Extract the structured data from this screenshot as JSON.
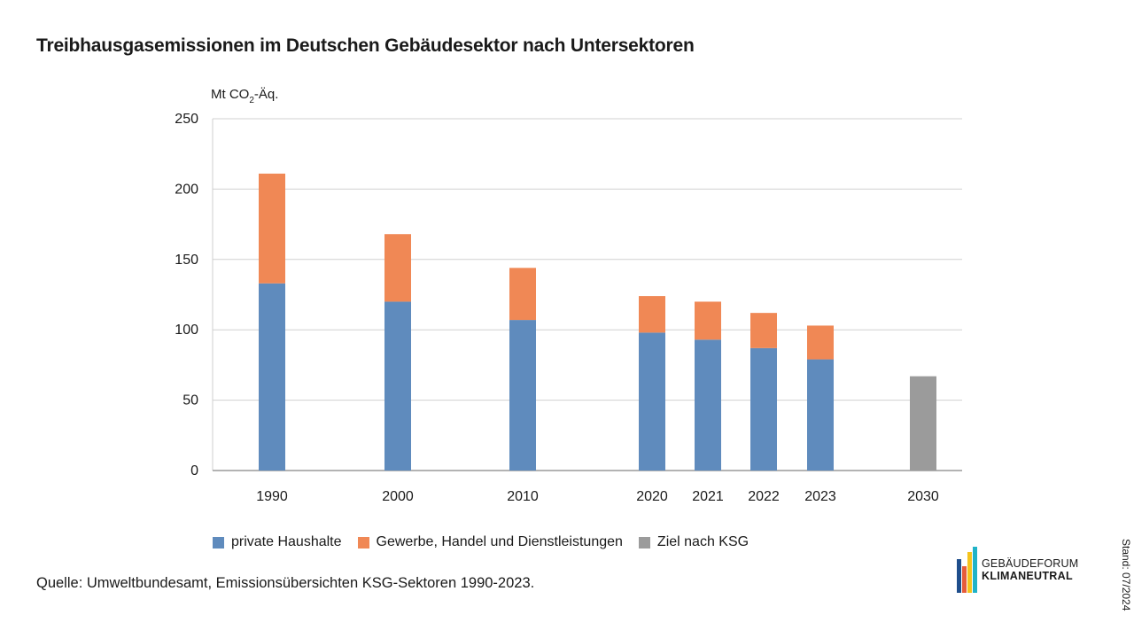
{
  "title": "Treibhausgasemissionen im Deutschen Gebäudesektor nach Untersektoren",
  "source": "Quelle: Umweltbundesamt, Emissionsübersichten KSG-Sektoren 1990-2023.",
  "stand": "Stand: 07/2024",
  "logo": {
    "line1": "GEBÄUDEFORUM",
    "line2": "KLIMANEUTRAL"
  },
  "chart_data": {
    "type": "bar",
    "stacked": true,
    "ylabel_main": "Mt CO",
    "ylabel_sub": "2",
    "ylabel_tail": "-Äq.",
    "ylim": [
      0,
      250
    ],
    "yticks": [
      0,
      50,
      100,
      150,
      200,
      250
    ],
    "grid": true,
    "legend_position": "bottom",
    "categories": [
      "1990",
      "2000",
      "2010",
      "2020",
      "2021",
      "2022",
      "2023",
      "2030"
    ],
    "series": [
      {
        "name": "private Haushalte",
        "color": "#5f8bbd",
        "values": [
          133,
          120,
          107,
          98,
          93,
          87,
          79,
          0
        ]
      },
      {
        "name": "Gewerbe, Handel und Dienstleistungen",
        "color": "#f08855",
        "values": [
          78,
          48,
          37,
          26,
          27,
          25,
          24,
          0
        ]
      },
      {
        "name": "Ziel nach KSG",
        "color": "#9b9b9b",
        "values": [
          0,
          0,
          0,
          0,
          0,
          0,
          0,
          67
        ]
      }
    ]
  }
}
